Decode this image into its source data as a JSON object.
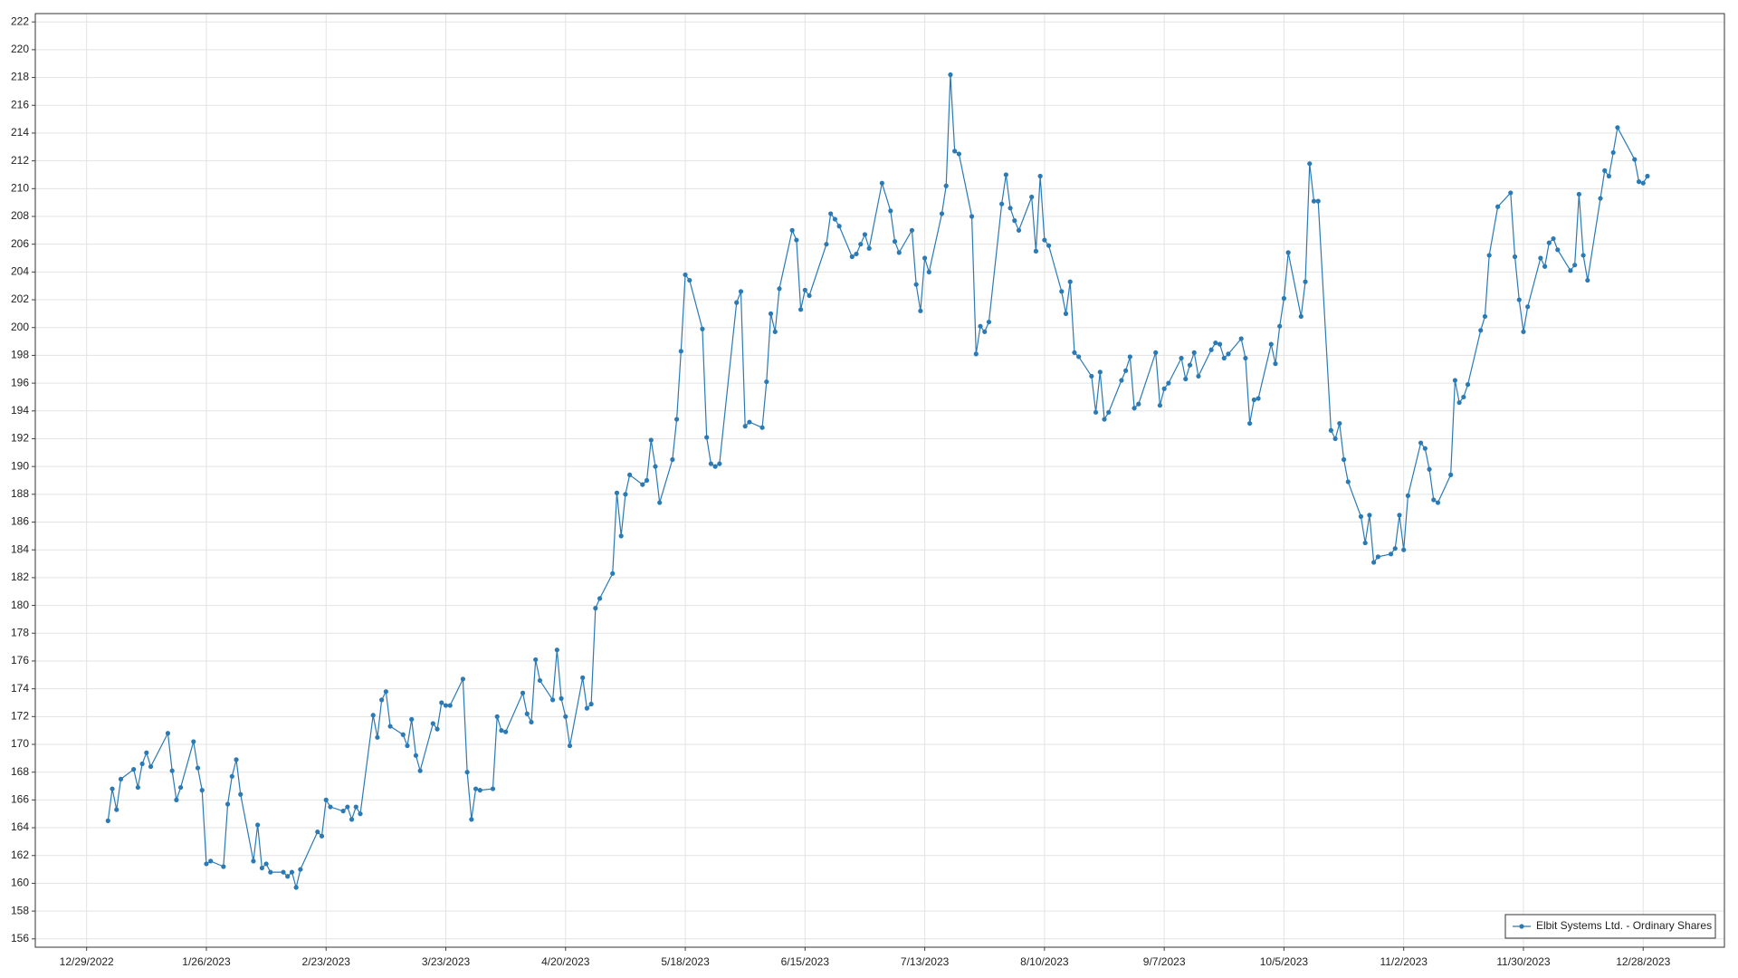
{
  "chart_data": {
    "type": "line",
    "x": [
      "2023-01-03",
      "2023-01-04",
      "2023-01-05",
      "2023-01-06",
      "2023-01-09",
      "2023-01-10",
      "2023-01-11",
      "2023-01-12",
      "2023-01-13",
      "2023-01-17",
      "2023-01-18",
      "2023-01-19",
      "2023-01-20",
      "2023-01-23",
      "2023-01-24",
      "2023-01-25",
      "2023-01-26",
      "2023-01-27",
      "2023-01-30",
      "2023-01-31",
      "2023-02-01",
      "2023-02-02",
      "2023-02-03",
      "2023-02-06",
      "2023-02-07",
      "2023-02-08",
      "2023-02-09",
      "2023-02-10",
      "2023-02-13",
      "2023-02-14",
      "2023-02-15",
      "2023-02-16",
      "2023-02-17",
      "2023-02-21",
      "2023-02-22",
      "2023-02-23",
      "2023-02-24",
      "2023-02-27",
      "2023-02-28",
      "2023-03-01",
      "2023-03-02",
      "2023-03-03",
      "2023-03-06",
      "2023-03-07",
      "2023-03-08",
      "2023-03-09",
      "2023-03-10",
      "2023-03-13",
      "2023-03-14",
      "2023-03-15",
      "2023-03-16",
      "2023-03-17",
      "2023-03-20",
      "2023-03-21",
      "2023-03-22",
      "2023-03-23",
      "2023-03-24",
      "2023-03-27",
      "2023-03-28",
      "2023-03-29",
      "2023-03-30",
      "2023-03-31",
      "2023-04-03",
      "2023-04-04",
      "2023-04-05",
      "2023-04-06",
      "2023-04-10",
      "2023-04-11",
      "2023-04-12",
      "2023-04-13",
      "2023-04-14",
      "2023-04-17",
      "2023-04-18",
      "2023-04-19",
      "2023-04-20",
      "2023-04-21",
      "2023-04-24",
      "2023-04-25",
      "2023-04-26",
      "2023-04-27",
      "2023-04-28",
      "2023-05-01",
      "2023-05-02",
      "2023-05-03",
      "2023-05-04",
      "2023-05-05",
      "2023-05-08",
      "2023-05-09",
      "2023-05-10",
      "2023-05-11",
      "2023-05-12",
      "2023-05-15",
      "2023-05-16",
      "2023-05-17",
      "2023-05-18",
      "2023-05-19",
      "2023-05-22",
      "2023-05-23",
      "2023-05-24",
      "2023-05-25",
      "2023-05-26",
      "2023-05-30",
      "2023-05-31",
      "2023-06-01",
      "2023-06-02",
      "2023-06-05",
      "2023-06-06",
      "2023-06-07",
      "2023-06-08",
      "2023-06-09",
      "2023-06-12",
      "2023-06-13",
      "2023-06-14",
      "2023-06-15",
      "2023-06-16",
      "2023-06-20",
      "2023-06-21",
      "2023-06-22",
      "2023-06-23",
      "2023-06-26",
      "2023-06-27",
      "2023-06-28",
      "2023-06-29",
      "2023-06-30",
      "2023-07-03",
      "2023-07-05",
      "2023-07-06",
      "2023-07-07",
      "2023-07-10",
      "2023-07-11",
      "2023-07-12",
      "2023-07-13",
      "2023-07-14",
      "2023-07-17",
      "2023-07-18",
      "2023-07-19",
      "2023-07-20",
      "2023-07-21",
      "2023-07-24",
      "2023-07-25",
      "2023-07-26",
      "2023-07-27",
      "2023-07-28",
      "2023-07-31",
      "2023-08-01",
      "2023-08-02",
      "2023-08-03",
      "2023-08-04",
      "2023-08-07",
      "2023-08-08",
      "2023-08-09",
      "2023-08-10",
      "2023-08-11",
      "2023-08-14",
      "2023-08-15",
      "2023-08-16",
      "2023-08-17",
      "2023-08-18",
      "2023-08-21",
      "2023-08-22",
      "2023-08-23",
      "2023-08-24",
      "2023-08-25",
      "2023-08-28",
      "2023-08-29",
      "2023-08-30",
      "2023-08-31",
      "2023-09-01",
      "2023-09-05",
      "2023-09-06",
      "2023-09-07",
      "2023-09-08",
      "2023-09-11",
      "2023-09-12",
      "2023-09-13",
      "2023-09-14",
      "2023-09-15",
      "2023-09-18",
      "2023-09-19",
      "2023-09-20",
      "2023-09-21",
      "2023-09-22",
      "2023-09-25",
      "2023-09-26",
      "2023-09-27",
      "2023-09-28",
      "2023-09-29",
      "2023-10-02",
      "2023-10-03",
      "2023-10-04",
      "2023-10-05",
      "2023-10-06",
      "2023-10-09",
      "2023-10-10",
      "2023-10-11",
      "2023-10-12",
      "2023-10-13",
      "2023-10-16",
      "2023-10-17",
      "2023-10-18",
      "2023-10-19",
      "2023-10-20",
      "2023-10-23",
      "2023-10-24",
      "2023-10-25",
      "2023-10-26",
      "2023-10-27",
      "2023-10-30",
      "2023-10-31",
      "2023-11-01",
      "2023-11-02",
      "2023-11-03",
      "2023-11-06",
      "2023-11-07",
      "2023-11-08",
      "2023-11-09",
      "2023-11-10",
      "2023-11-13",
      "2023-11-14",
      "2023-11-15",
      "2023-11-16",
      "2023-11-17",
      "2023-11-20",
      "2023-11-21",
      "2023-11-22",
      "2023-11-24",
      "2023-11-27",
      "2023-11-28",
      "2023-11-29",
      "2023-11-30",
      "2023-12-01",
      "2023-12-04",
      "2023-12-05",
      "2023-12-06",
      "2023-12-07",
      "2023-12-08",
      "2023-12-11",
      "2023-12-12",
      "2023-12-13",
      "2023-12-14",
      "2023-12-15",
      "2023-12-18",
      "2023-12-19",
      "2023-12-20",
      "2023-12-21",
      "2023-12-22",
      "2023-12-26",
      "2023-12-27",
      "2023-12-28",
      "2023-12-29"
    ],
    "series": [
      {
        "name": "Elbit Systems Ltd. - Ordinary Shares",
        "color": "#2a7ab5",
        "values": [
          164.5,
          166.8,
          165.3,
          167.5,
          168.2,
          166.9,
          168.6,
          169.4,
          168.4,
          170.8,
          168.1,
          166.0,
          166.9,
          170.2,
          168.3,
          166.7,
          161.4,
          161.6,
          161.2,
          165.7,
          167.7,
          168.9,
          166.4,
          161.6,
          164.2,
          161.1,
          161.4,
          160.8,
          160.8,
          160.5,
          160.8,
          159.7,
          161.0,
          163.7,
          163.4,
          166.0,
          165.5,
          165.2,
          165.5,
          164.6,
          165.5,
          165.0,
          172.1,
          170.5,
          173.2,
          173.8,
          171.3,
          170.7,
          169.9,
          171.8,
          169.2,
          168.1,
          171.5,
          171.1,
          173.0,
          172.8,
          172.8,
          174.7,
          168.0,
          164.6,
          166.8,
          166.7,
          166.8,
          172.0,
          171.0,
          170.9,
          173.7,
          172.2,
          171.6,
          176.1,
          174.6,
          173.2,
          176.8,
          173.3,
          172.0,
          169.9,
          174.8,
          172.6,
          172.9,
          179.8,
          180.5,
          182.3,
          188.1,
          185.0,
          188.0,
          189.4,
          188.7,
          189.0,
          191.9,
          190.0,
          187.4,
          190.5,
          193.4,
          198.3,
          203.8,
          203.4,
          199.9,
          192.1,
          190.2,
          190.0,
          190.2,
          201.8,
          202.6,
          192.9,
          193.2,
          192.8,
          196.1,
          201.0,
          199.7,
          202.8,
          207.0,
          206.3,
          201.3,
          202.7,
          202.3,
          206.0,
          208.2,
          207.8,
          207.3,
          205.1,
          205.3,
          206.0,
          206.7,
          205.7,
          210.4,
          208.4,
          206.2,
          205.4,
          207.0,
          203.1,
          201.2,
          205.0,
          204.0,
          208.2,
          210.2,
          218.2,
          212.7,
          212.5,
          208.0,
          198.1,
          200.1,
          199.7,
          200.4,
          208.9,
          211.0,
          208.6,
          207.7,
          207.0,
          209.4,
          205.5,
          210.9,
          206.3,
          205.9,
          202.6,
          201.0,
          203.3,
          198.2,
          197.9,
          196.5,
          193.9,
          196.8,
          193.4,
          193.9,
          196.2,
          196.9,
          197.9,
          194.2,
          194.5,
          198.2,
          194.4,
          195.6,
          196.0,
          197.8,
          196.3,
          197.3,
          198.2,
          196.5,
          198.4,
          198.9,
          198.8,
          197.8,
          198.1,
          199.2,
          197.8,
          193.1,
          194.8,
          194.9,
          198.8,
          197.4,
          200.1,
          202.1,
          205.4,
          200.8,
          203.3,
          211.8,
          209.1,
          209.1,
          192.6,
          192.0,
          193.1,
          190.5,
          188.9,
          186.4,
          184.5,
          186.5,
          183.1,
          183.5,
          183.7,
          184.1,
          186.5,
          184.0,
          187.9,
          191.7,
          191.3,
          189.8,
          187.6,
          187.4,
          189.4,
          196.2,
          194.6,
          195.0,
          195.9,
          199.8,
          200.8,
          205.2,
          208.7,
          209.7,
          205.1,
          202.0,
          199.7,
          201.5,
          205.0,
          204.4,
          206.1,
          206.4,
          205.6,
          204.1,
          204.5,
          209.6,
          205.2,
          203.4,
          209.3,
          211.3,
          210.9,
          212.6,
          214.4,
          212.1,
          210.5,
          210.4,
          210.9
        ]
      }
    ],
    "xlim": [
      "2022-12-17",
      "2024-01-16"
    ],
    "xticks": [
      {
        "value": "2022-12-29",
        "label": "12/29/2022"
      },
      {
        "value": "2023-01-26",
        "label": "1/26/2023"
      },
      {
        "value": "2023-02-23",
        "label": "2/23/2023"
      },
      {
        "value": "2023-03-23",
        "label": "3/23/2023"
      },
      {
        "value": "2023-04-20",
        "label": "4/20/2023"
      },
      {
        "value": "2023-05-18",
        "label": "5/18/2023"
      },
      {
        "value": "2023-06-15",
        "label": "6/15/2023"
      },
      {
        "value": "2023-07-13",
        "label": "7/13/2023"
      },
      {
        "value": "2023-08-10",
        "label": "8/10/2023"
      },
      {
        "value": "2023-09-07",
        "label": "9/7/2023"
      },
      {
        "value": "2023-10-05",
        "label": "10/5/2023"
      },
      {
        "value": "2023-11-02",
        "label": "11/2/2023"
      },
      {
        "value": "2023-11-30",
        "label": "11/30/2023"
      },
      {
        "value": "2023-12-28",
        "label": "12/28/2023"
      }
    ],
    "ylim": [
      155.4,
      222.6
    ],
    "yticks": [
      156,
      158,
      160,
      162,
      164,
      166,
      168,
      170,
      172,
      174,
      176,
      178,
      180,
      182,
      184,
      186,
      188,
      190,
      192,
      194,
      196,
      198,
      200,
      202,
      204,
      206,
      208,
      210,
      212,
      214,
      216,
      218,
      220,
      222
    ],
    "grid": true,
    "legend": "lower right"
  }
}
